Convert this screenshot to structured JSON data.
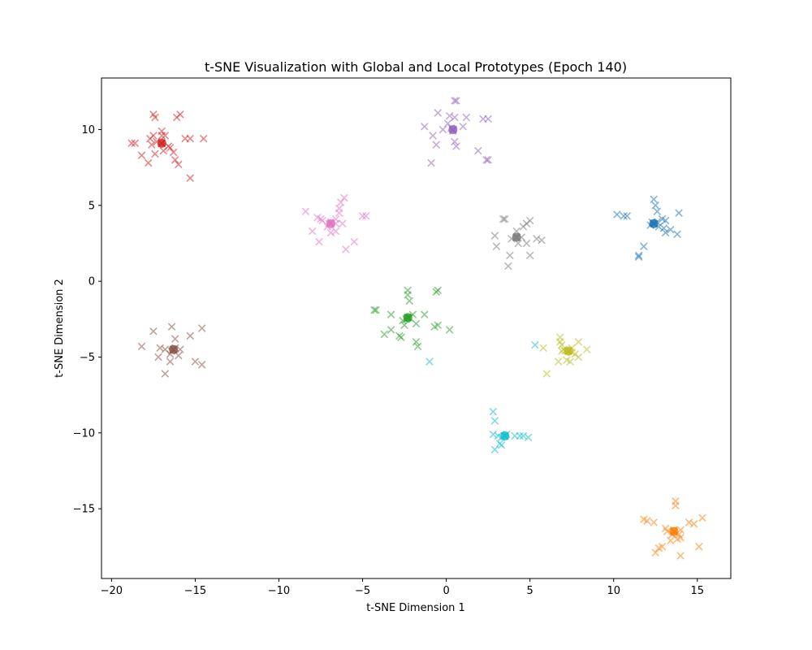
{
  "chart_data": {
    "type": "scatter",
    "title": "t-SNE Visualization with Global and Local Prototypes (Epoch 140)",
    "xlabel": "t-SNE Dimension 1",
    "ylabel": "t-SNE Dimension 2",
    "xlim": [
      -20.6,
      17.0
    ],
    "ylim": [
      -19.6,
      13.4
    ],
    "xticks": [
      -20,
      -15,
      -10,
      -5,
      0,
      5,
      10,
      15
    ],
    "yticks": [
      -15,
      -10,
      -5,
      0,
      5,
      10
    ],
    "xtick_labels": [
      "−20",
      "−15",
      "−10",
      "−5",
      "0",
      "5",
      "10",
      "15"
    ],
    "ytick_labels": [
      "−15",
      "−10",
      "−5",
      "0",
      "5",
      "10"
    ],
    "grid": false,
    "marker": "x",
    "series": [
      {
        "color": "#1f77b4",
        "center": [
          12.4,
          3.8
        ],
        "points": [
          [
            12.4,
            5.4
          ],
          [
            12.5,
            5.0
          ],
          [
            12.6,
            4.6
          ],
          [
            13.9,
            4.5
          ],
          [
            10.2,
            4.4
          ],
          [
            10.8,
            4.3
          ],
          [
            10.6,
            4.3
          ],
          [
            12.9,
            4.1
          ],
          [
            13.1,
            4.0
          ],
          [
            12.2,
            3.7
          ],
          [
            12.7,
            3.6
          ],
          [
            13.0,
            3.5
          ],
          [
            13.4,
            3.4
          ],
          [
            13.1,
            3.2
          ],
          [
            13.8,
            3.1
          ],
          [
            11.8,
            2.3
          ],
          [
            11.5,
            1.7
          ],
          [
            11.5,
            1.6
          ],
          [
            12.3,
            3.9
          ],
          [
            12.6,
            3.9
          ]
        ]
      },
      {
        "color": "#ff7f0e",
        "center": [
          13.6,
          -16.5
        ],
        "points": [
          [
            13.7,
            -14.5
          ],
          [
            13.7,
            -14.8
          ],
          [
            11.8,
            -15.7
          ],
          [
            12.0,
            -15.8
          ],
          [
            12.4,
            -15.9
          ],
          [
            15.3,
            -15.6
          ],
          [
            14.5,
            -15.9
          ],
          [
            14.8,
            -16.0
          ],
          [
            13.1,
            -16.3
          ],
          [
            13.2,
            -16.5
          ],
          [
            14.0,
            -16.4
          ],
          [
            13.5,
            -16.7
          ],
          [
            14.0,
            -16.9
          ],
          [
            13.8,
            -17.0
          ],
          [
            13.4,
            -17.1
          ],
          [
            12.9,
            -17.5
          ],
          [
            12.7,
            -17.6
          ],
          [
            15.1,
            -17.5
          ],
          [
            12.5,
            -17.9
          ],
          [
            14.0,
            -18.1
          ],
          [
            13.6,
            -16.4
          ],
          [
            13.9,
            -16.7
          ]
        ]
      },
      {
        "color": "#2ca02c",
        "center": [
          -2.3,
          -2.4
        ],
        "points": [
          [
            -2.3,
            -0.6
          ],
          [
            -0.5,
            -0.6
          ],
          [
            -0.6,
            -0.7
          ],
          [
            -2.3,
            -0.9
          ],
          [
            -2.2,
            -1.3
          ],
          [
            -4.2,
            -1.9
          ],
          [
            -4.3,
            -1.9
          ],
          [
            -3.3,
            -2.2
          ],
          [
            -1.3,
            -2.2
          ],
          [
            -2.0,
            -2.2
          ],
          [
            -2.6,
            -2.6
          ],
          [
            -1.8,
            -2.8
          ],
          [
            -2.5,
            -2.9
          ],
          [
            -0.5,
            -2.9
          ],
          [
            -0.7,
            -3.0
          ],
          [
            -3.3,
            -3.2
          ],
          [
            -3.7,
            -3.5
          ],
          [
            -2.8,
            -3.6
          ],
          [
            -2.7,
            -3.7
          ],
          [
            0.2,
            -3.2
          ],
          [
            -1.8,
            -4.0
          ],
          [
            -1.7,
            -4.3
          ],
          [
            -2.2,
            -2.4
          ],
          [
            -2.4,
            -2.5
          ]
        ]
      },
      {
        "color": "#d62728",
        "center": [
          -17.0,
          9.1
        ],
        "points": [
          [
            -17.5,
            11.0
          ],
          [
            -15.9,
            11.0
          ],
          [
            -17.4,
            10.8
          ],
          [
            -16.1,
            10.8
          ],
          [
            -17.0,
            9.9
          ],
          [
            -17.5,
            9.6
          ],
          [
            -17.0,
            9.6
          ],
          [
            -16.8,
            9.6
          ],
          [
            -17.7,
            9.4
          ],
          [
            -15.6,
            9.4
          ],
          [
            -15.3,
            9.4
          ],
          [
            -14.5,
            9.4
          ],
          [
            -18.8,
            9.1
          ],
          [
            -18.6,
            9.1
          ],
          [
            -17.3,
            9.2
          ],
          [
            -17.6,
            9.0
          ],
          [
            -16.6,
            8.9
          ],
          [
            -16.5,
            8.8
          ],
          [
            -16.9,
            8.6
          ],
          [
            -16.3,
            8.5
          ],
          [
            -17.4,
            8.4
          ],
          [
            -18.2,
            8.3
          ],
          [
            -16.2,
            8.0
          ],
          [
            -16.0,
            7.7
          ],
          [
            -17.8,
            7.8
          ],
          [
            -15.3,
            6.8
          ],
          [
            -17.0,
            9.1
          ]
        ]
      },
      {
        "color": "#9467bd",
        "center": [
          0.4,
          10.0
        ],
        "points": [
          [
            0.6,
            11.9
          ],
          [
            0.5,
            11.9
          ],
          [
            -0.5,
            11.1
          ],
          [
            0.2,
            10.9
          ],
          [
            0.5,
            10.8
          ],
          [
            1.2,
            10.8
          ],
          [
            2.5,
            10.7
          ],
          [
            2.2,
            10.7
          ],
          [
            0.1,
            10.4
          ],
          [
            -1.3,
            10.2
          ],
          [
            1.0,
            10.2
          ],
          [
            -0.2,
            10.0
          ],
          [
            0.4,
            9.9
          ],
          [
            -0.8,
            9.6
          ],
          [
            0.5,
            9.2
          ],
          [
            0.6,
            8.9
          ],
          [
            -0.6,
            9.0
          ],
          [
            1.9,
            8.6
          ],
          [
            2.4,
            8.0
          ],
          [
            2.5,
            8.0
          ],
          [
            -0.9,
            7.8
          ],
          [
            0.3,
            10.1
          ]
        ]
      },
      {
        "color": "#8c564b",
        "center": [
          -16.3,
          -4.5
        ],
        "points": [
          [
            -16.4,
            -3.0
          ],
          [
            -17.5,
            -3.3
          ],
          [
            -14.6,
            -3.1
          ],
          [
            -15.3,
            -3.6
          ],
          [
            -16.2,
            -3.8
          ],
          [
            -18.2,
            -4.3
          ],
          [
            -17.1,
            -4.4
          ],
          [
            -16.8,
            -4.5
          ],
          [
            -15.9,
            -4.5
          ],
          [
            -16.5,
            -4.8
          ],
          [
            -17.2,
            -5.0
          ],
          [
            -16.0,
            -4.9
          ],
          [
            -16.5,
            -5.3
          ],
          [
            -15.0,
            -5.3
          ],
          [
            -14.6,
            -5.5
          ],
          [
            -16.8,
            -6.1
          ],
          [
            -16.2,
            -4.4
          ],
          [
            -16.4,
            -4.6
          ]
        ]
      },
      {
        "color": "#e377c2",
        "center": [
          -6.9,
          3.8
        ],
        "points": [
          [
            -6.1,
            5.5
          ],
          [
            -6.3,
            5.2
          ],
          [
            -6.4,
            4.8
          ],
          [
            -6.4,
            4.5
          ],
          [
            -8.4,
            4.6
          ],
          [
            -7.7,
            4.2
          ],
          [
            -7.5,
            4.1
          ],
          [
            -5.0,
            4.3
          ],
          [
            -4.8,
            4.3
          ],
          [
            -6.6,
            4.1
          ],
          [
            -7.4,
            4.0
          ],
          [
            -6.6,
            3.8
          ],
          [
            -6.2,
            3.8
          ],
          [
            -7.1,
            3.6
          ],
          [
            -6.6,
            3.3
          ],
          [
            -6.9,
            3.2
          ],
          [
            -8.0,
            3.3
          ],
          [
            -7.6,
            2.6
          ],
          [
            -5.5,
            2.6
          ],
          [
            -6.0,
            2.1
          ],
          [
            -6.9,
            3.9
          ],
          [
            -7.0,
            3.8
          ]
        ]
      },
      {
        "color": "#7f7f7f",
        "center": [
          4.2,
          2.9
        ],
        "points": [
          [
            3.5,
            4.1
          ],
          [
            3.4,
            4.1
          ],
          [
            5.0,
            4.0
          ],
          [
            4.8,
            3.8
          ],
          [
            4.6,
            3.6
          ],
          [
            4.2,
            3.3
          ],
          [
            2.9,
            3.0
          ],
          [
            3.9,
            2.8
          ],
          [
            4.5,
            2.9
          ],
          [
            5.4,
            2.8
          ],
          [
            5.7,
            2.7
          ],
          [
            4.3,
            2.5
          ],
          [
            4.8,
            2.5
          ],
          [
            3.0,
            2.3
          ],
          [
            3.8,
            1.7
          ],
          [
            5.0,
            1.7
          ],
          [
            3.7,
            1.0
          ],
          [
            4.2,
            2.9
          ]
        ]
      },
      {
        "color": "#bcbd22",
        "center": [
          7.3,
          -4.6
        ],
        "points": [
          [
            6.8,
            -3.7
          ],
          [
            6.8,
            -4.0
          ],
          [
            6.9,
            -4.2
          ],
          [
            7.9,
            -4.0
          ],
          [
            5.8,
            -4.4
          ],
          [
            7.0,
            -4.5
          ],
          [
            7.5,
            -4.4
          ],
          [
            8.4,
            -4.5
          ],
          [
            6.9,
            -4.6
          ],
          [
            7.5,
            -4.7
          ],
          [
            7.7,
            -4.8
          ],
          [
            7.9,
            -5.0
          ],
          [
            7.2,
            -5.2
          ],
          [
            6.7,
            -5.3
          ],
          [
            7.4,
            -5.3
          ],
          [
            6.0,
            -6.1
          ],
          [
            7.3,
            -4.6
          ],
          [
            7.1,
            -4.6
          ]
        ]
      },
      {
        "color": "#17becf",
        "center": [
          3.5,
          -10.2
        ],
        "points": [
          [
            2.8,
            -8.6
          ],
          [
            2.9,
            -9.2
          ],
          [
            2.8,
            -10.1
          ],
          [
            3.1,
            -10.2
          ],
          [
            3.3,
            -10.3
          ],
          [
            3.6,
            -10.1
          ],
          [
            4.1,
            -10.2
          ],
          [
            4.4,
            -10.2
          ],
          [
            4.6,
            -10.2
          ],
          [
            4.9,
            -10.3
          ],
          [
            3.2,
            -10.7
          ],
          [
            3.3,
            -10.8
          ],
          [
            2.9,
            -11.1
          ],
          [
            5.3,
            -4.2
          ],
          [
            -1.0,
            -5.3
          ],
          [
            3.5,
            -10.2
          ]
        ]
      }
    ]
  }
}
